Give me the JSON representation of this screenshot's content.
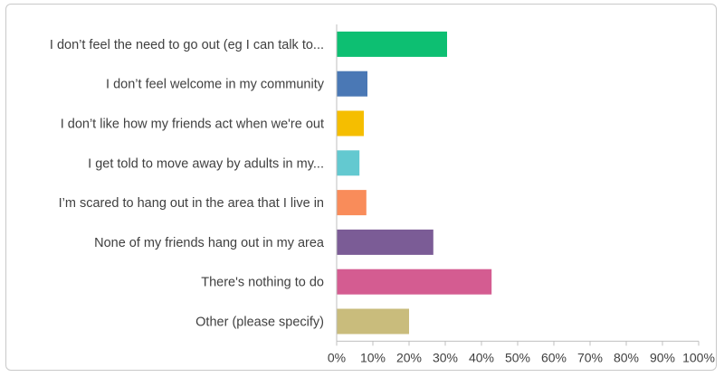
{
  "chart_data": {
    "type": "bar",
    "orientation": "horizontal",
    "title": "",
    "xlabel": "",
    "ylabel": "",
    "categories": [
      "I don’t feel the need to go out (eg I can talk to...",
      "I don’t feel welcome in my community",
      "I don’t like how my friends act when we're out",
      "I get told to move away by adults in my...",
      "I’m scared to hang out in the area that I live in",
      "None of my friends hang out in my area",
      "There's nothing to do",
      "Other (please specify)"
    ],
    "values": [
      30.5,
      8.5,
      7.5,
      6.3,
      8.2,
      26.7,
      42.8,
      20.0
    ],
    "colors": [
      "#0dbf72",
      "#4a78b5",
      "#f5be00",
      "#63c9d0",
      "#f98c5a",
      "#7b5c96",
      "#d45c91",
      "#c9bc7c"
    ],
    "xlim": [
      0,
      100
    ],
    "x_ticks": [
      "0%",
      "10%",
      "20%",
      "30%",
      "40%",
      "50%",
      "60%",
      "70%",
      "80%",
      "90%",
      "100%"
    ],
    "grid": false,
    "legend": "none"
  }
}
